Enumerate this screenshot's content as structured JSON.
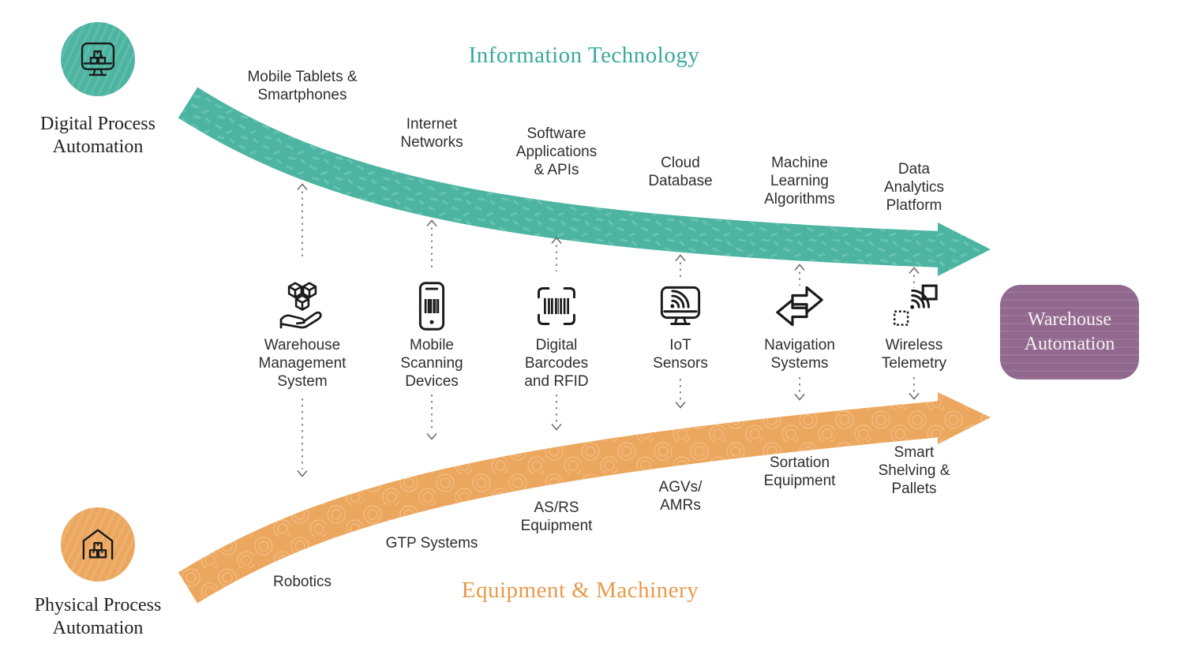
{
  "colors": {
    "teal_arrow": "#4db4a2",
    "teal_texture": "#66c2b1",
    "teal_title": "#3aa99c",
    "orange_arrow": "#eca75f",
    "orange_texture": "#f2bd84",
    "orange_title": "#e8994a",
    "purple_box": "#92698e",
    "box_text": "#f6f0f5",
    "label_text": "#2e2e2e",
    "connector_gray": "#6e6e6e",
    "icon_stroke": "#1a1a1a"
  },
  "titles": {
    "top": "Information Technology",
    "bottom": "Equipment & Machinery"
  },
  "legend_circles": {
    "digital": {
      "label": "Digital Process\nAutomation",
      "icon": "monitor-boxes-icon"
    },
    "physical": {
      "label": "Physical Process\nAutomation",
      "icon": "warehouse-boxes-icon"
    }
  },
  "result_box": {
    "label": "Warehouse\nAutomation"
  },
  "columns": [
    {
      "top_label": "Mobile Tablets &\nSmartphones",
      "icon": "cubes-hand-icon",
      "mid_label": "Warehouse\nManagement\nSystem",
      "bottom_label": "Robotics"
    },
    {
      "top_label": "Internet\nNetworks",
      "icon": "phone-barcode-icon",
      "mid_label": "Mobile\nScanning\nDevices",
      "bottom_label": "GTP Systems"
    },
    {
      "top_label": "Software\nApplications\n& APIs",
      "icon": "barcode-scan-icon",
      "mid_label": "Digital\nBarcodes\nand RFID",
      "bottom_label": "AS/RS\nEquipment"
    },
    {
      "top_label": "Cloud\nDatabase",
      "icon": "monitor-wifi-icon",
      "mid_label": "IoT\nSensors",
      "bottom_label": "AGVs/\nAMRs"
    },
    {
      "top_label": "Machine\nLearning\nAlgorithms",
      "icon": "exchange-arrows-icon",
      "mid_label": "Navigation\nSystems",
      "bottom_label": "Sortation\nEquipment"
    },
    {
      "top_label": "Data\nAnalytics\nPlatform",
      "icon": "wifi-telemetry-icon",
      "mid_label": "Wireless\nTelemetry",
      "bottom_label": "Smart\nShelving &\nPallets"
    }
  ]
}
